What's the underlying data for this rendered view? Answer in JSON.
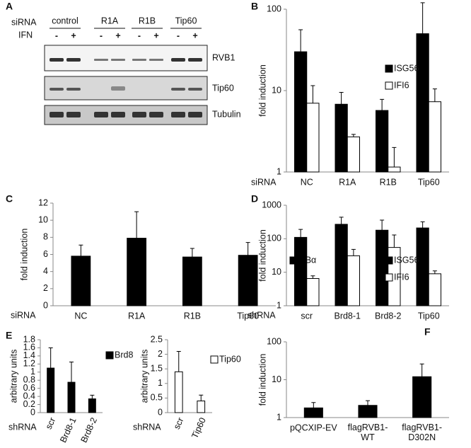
{
  "blot": {
    "panel_label": "A",
    "row_labels": [
      "siRNA",
      "IFN"
    ],
    "groups": [
      "control",
      "R1A",
      "R1B",
      "Tip60"
    ],
    "treatments": [
      "-",
      "+",
      "-",
      "+",
      "-",
      "+",
      "-",
      "+"
    ],
    "bands": [
      "RVB1",
      "Tip60",
      "Tubulin"
    ]
  },
  "chart_data": [
    {
      "type": "bar",
      "panel_label": "B",
      "ylabel": "fold induction",
      "xlabel": "siRNA",
      "log": true,
      "categories": [
        "NC",
        "R1A",
        "R1B",
        "Tip60"
      ],
      "series": [
        {
          "name": "ISG56",
          "color": "#000000",
          "values": [
            30,
            6.8,
            5.7,
            50
          ],
          "errors": [
            26,
            2.7,
            2.1,
            70
          ]
        },
        {
          "name": "IFI6",
          "color": "#ffffff",
          "values": [
            7,
            2.7,
            1.15,
            7.3
          ],
          "errors": [
            4.5,
            0.2,
            0.85,
            3.2
          ]
        }
      ],
      "ylim": [
        1,
        100
      ],
      "yticks": [
        1,
        10,
        100
      ]
    },
    {
      "type": "bar",
      "panel_label": "C",
      "ylabel": "fold induction",
      "xlabel": "siRNA",
      "categories": [
        "NC",
        "R1A",
        "R1B",
        "Tip60"
      ],
      "series": [
        {
          "name": "IκBα",
          "color": "#000000",
          "values": [
            5.8,
            7.9,
            5.7,
            5.9
          ],
          "errors": [
            1.3,
            3.1,
            1.0,
            1.5
          ]
        }
      ],
      "ylim": [
        0,
        12
      ],
      "yticks": [
        0,
        2,
        4,
        6,
        8,
        10,
        12
      ]
    },
    {
      "type": "bar",
      "panel_label": "D",
      "ylabel": "fold induction",
      "xlabel": "shRNA",
      "log": true,
      "categories": [
        "scr",
        "Brd8-1",
        "Brd8-2",
        "Tip60"
      ],
      "series": [
        {
          "name": "ISG56",
          "color": "#000000",
          "values": [
            110,
            270,
            180,
            210
          ],
          "errors": [
            80,
            170,
            180,
            110
          ]
        },
        {
          "name": "IFI6",
          "color": "#ffffff",
          "values": [
            6.5,
            31,
            55,
            9
          ],
          "errors": [
            1.3,
            17,
            75,
            2
          ]
        }
      ],
      "ylim": [
        1,
        1000
      ],
      "yticks": [
        1,
        10,
        100,
        1000
      ]
    },
    {
      "type": "bar",
      "panel_label": "E",
      "ylabel": "arbitrary units",
      "xlabel": "shRNA",
      "rotate": true,
      "categories": [
        "scr",
        "Brd8-1",
        "Brd8-2"
      ],
      "series": [
        {
          "name": "Brd8",
          "color": "#000000",
          "values": [
            1.1,
            0.75,
            0.34
          ],
          "errors": [
            0.5,
            0.5,
            0.09
          ]
        }
      ],
      "ylim": [
        0,
        1.8
      ],
      "yticks": [
        0,
        0.2,
        0.4,
        0.6,
        0.8,
        1,
        1.2,
        1.4,
        1.6,
        1.8
      ]
    },
    {
      "type": "bar",
      "ylabel": "arbitrary units",
      "xlabel": "shRNA",
      "rotate": true,
      "categories": [
        "scr",
        "Tip60"
      ],
      "series": [
        {
          "name": "Tip60",
          "color": "#ffffff",
          "values": [
            1.4,
            0.4
          ],
          "errors": [
            0.7,
            0.2
          ]
        }
      ],
      "ylim": [
        0,
        2.5
      ],
      "yticks": [
        0,
        0.5,
        1,
        1.5,
        2,
        2.5
      ]
    },
    {
      "type": "bar",
      "panel_label": "F",
      "ylabel": "fold induction",
      "log": true,
      "categories": [
        "pQCXIP-EV",
        "flagRVB1-\nWT",
        "flagRVB1-\nD302N"
      ],
      "series": [
        {
          "color": "#000000",
          "values": [
            1.8,
            2.1,
            12
          ],
          "errors": [
            0.7,
            0.7,
            14
          ]
        }
      ],
      "ylim": [
        1,
        100
      ],
      "yticks": [
        1,
        10,
        100
      ]
    }
  ]
}
